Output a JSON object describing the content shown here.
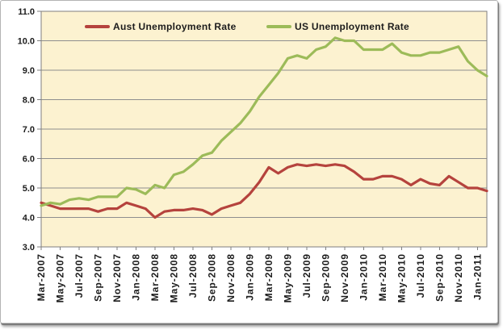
{
  "chart_data": {
    "type": "line",
    "title": "",
    "xlabel": "",
    "ylabel": "",
    "ylim": [
      3.0,
      11.0
    ],
    "ytick_labels": [
      "11.0",
      "10.0",
      "9.0",
      "8.0",
      "7.0",
      "6.0",
      "5.0",
      "4.0",
      "3.0"
    ],
    "x_tick_labels": [
      "Mar-2007",
      "May-2007",
      "Jul-2007",
      "Sep-2007",
      "Nov-2007",
      "Jan-2008",
      "Mar-2008",
      "May-2008",
      "Jul-2008",
      "Sep-2008",
      "Nov-2008",
      "Jan-2009",
      "Mar-2009",
      "May-2009",
      "Jul-2009",
      "Sep-2009",
      "Nov-2009",
      "Jan-2010",
      "Mar-2010",
      "May-2010",
      "Jul-2010",
      "Sep-2010",
      "Nov-2010",
      "Jan-2011"
    ],
    "x_tick_label_every_n_months": 2,
    "x_start_month": "Mar-2007",
    "x_end_month": "Feb-2011",
    "grid": true,
    "legend_position": "top-inside",
    "series": [
      {
        "name": "Aust Unemployment Rate",
        "color": "#b5433d",
        "values": [
          4.5,
          4.4,
          4.3,
          4.3,
          4.3,
          4.3,
          4.2,
          4.3,
          4.3,
          4.5,
          4.4,
          4.3,
          4.0,
          4.2,
          4.25,
          4.25,
          4.3,
          4.25,
          4.1,
          4.3,
          4.4,
          4.5,
          4.8,
          5.2,
          5.7,
          5.5,
          5.7,
          5.8,
          5.75,
          5.8,
          5.75,
          5.8,
          5.75,
          5.55,
          5.3,
          5.3,
          5.4,
          5.4,
          5.3,
          5.1,
          5.3,
          5.15,
          5.1,
          5.4,
          5.2,
          5.0,
          5.0,
          4.9
        ]
      },
      {
        "name": "US Unemployment Rate",
        "color": "#9cbb59",
        "values": [
          4.4,
          4.5,
          4.45,
          4.6,
          4.65,
          4.6,
          4.7,
          4.7,
          4.7,
          5.0,
          4.95,
          4.8,
          5.1,
          5.0,
          5.45,
          5.55,
          5.8,
          6.1,
          6.2,
          6.6,
          6.9,
          7.2,
          7.6,
          8.1,
          8.5,
          8.9,
          9.4,
          9.5,
          9.4,
          9.7,
          9.8,
          10.1,
          10.0,
          10.0,
          9.7,
          9.7,
          9.7,
          9.9,
          9.6,
          9.5,
          9.5,
          9.6,
          9.6,
          9.7,
          9.8,
          9.3,
          9.0,
          8.8
        ]
      }
    ],
    "colors": {
      "plot_background": "#fcf2d0",
      "gridline": "#8e8e8e",
      "plot_border": "#7f7f7f",
      "axis_text": "#1c1c1c",
      "outer_background": "#ffffff"
    }
  }
}
